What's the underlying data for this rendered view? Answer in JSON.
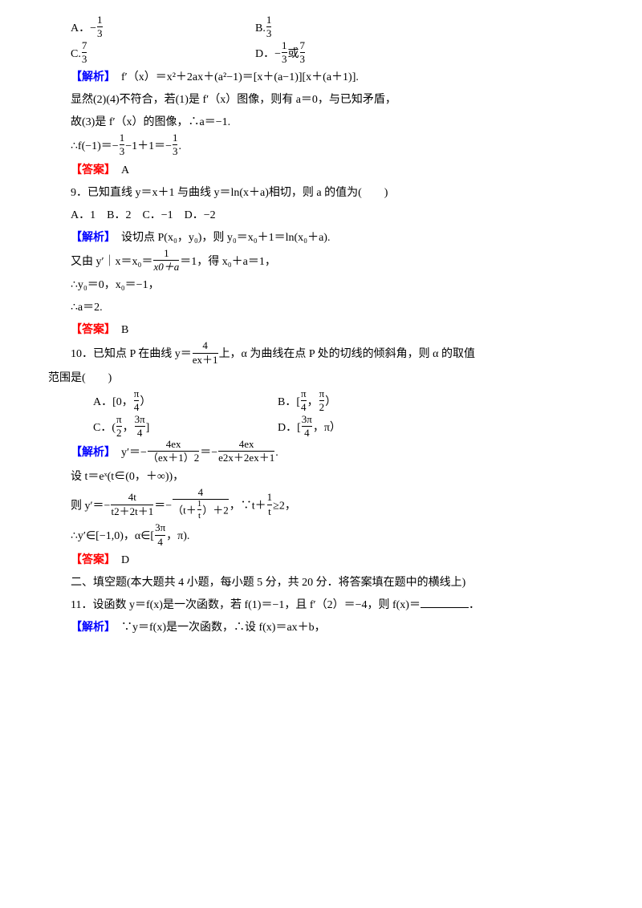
{
  "colors": {
    "analysis": "#0000ff",
    "answer": "#ff0000",
    "text": "#000000",
    "bg": "#ffffff"
  },
  "typography": {
    "body_fontsize": 14,
    "frac_fontsize": 13,
    "line_height": 2.0
  },
  "labels": {
    "analysis": "【解析】",
    "answer": "【答案】"
  },
  "q8": {
    "optA_prefix": "A．−",
    "optA_num": "1",
    "optA_den": "3",
    "optB_prefix": "B.",
    "optB_num": "1",
    "optB_den": "3",
    "optC_prefix": "C.",
    "optC_num": "7",
    "optC_den": "3",
    "optD_prefix": "D．−",
    "optD_num1": "1",
    "optD_den1": "3",
    "optD_mid": "或",
    "optD_num2": "7",
    "optD_den2": "3",
    "ana1": "f′（x）＝x²＋2ax＋(a²−1)＝[x＋(a−1)][x＋(a＋1)].",
    "ana2": "显然(2)(4)不符合，若(1)是 f′（x）图像，则有 a＝0，与已知矛盾，",
    "ana3": "故(3)是 f′（x）的图像，∴a＝−1.",
    "ana4a": "∴f(−1)＝−",
    "ana4_num1": "1",
    "ana4_den1": "3",
    "ana4b": "−1＋1＝−",
    "ana4_num2": "1",
    "ana4_den2": "3",
    "ana4c": ".",
    "answer_val": "　A"
  },
  "q9": {
    "stem": "9．已知直线 y＝x＋1 与曲线 y＝ln(x＋a)相切，则 a 的值为(　　)",
    "opts": "A．1　B．2　C．−1　D．−2",
    "ana1": "　设切点 P(x₀，y₀)，则 y₀＝x₀＋1＝ln(x₀＋a).",
    "ana2a": "又由 y′｜x＝x₀＝",
    "ana2_num": "1",
    "ana2_den": "x0＋a",
    "ana2b": "＝1，得 x₀＋a＝1，",
    "ana3": "∴y₀＝0，x₀＝−1，",
    "ana4": "∴a＝2.",
    "answer_val": "　B"
  },
  "q10": {
    "stem_a": "10．已知点 P 在曲线 y＝",
    "stem_num": "4",
    "stem_den": "ex＋1",
    "stem_b": "上，α 为曲线在点 P 处的切线的倾斜角，则 α 的取值",
    "stem_c": "范围是(　　)",
    "optA_a": "A．[0，",
    "optA_num": "π",
    "optA_den": "4",
    "optA_b": "）",
    "optB_a": "B．[",
    "optB_num1": "π",
    "optB_den1": "4",
    "optB_mid": "，",
    "optB_num2": "π",
    "optB_den2": "2",
    "optB_b": "）",
    "optC_a": "C．(",
    "optC_num1": "π",
    "optC_den1": "2",
    "optC_mid": "，",
    "optC_num2": "3π",
    "optC_den2": "4",
    "optC_b": "]",
    "optD_a": "D．[",
    "optD_num": "3π",
    "optD_den": "4",
    "optD_b": "，π）",
    "ana1a": "　y′＝−",
    "ana1_num1": "4ex",
    "ana1_den1": "（ex＋1）2",
    "ana1b": "＝−",
    "ana1_num2": "4ex",
    "ana1_den2": "e2x＋2ex＋1",
    "ana1c": ".",
    "ana2": "设 t＝eˣ(t∈(0，＋∞))，",
    "ana3a": "则 y′＝−",
    "ana3_num1": "4t",
    "ana3_den1": "t2＋2t＋1",
    "ana3b": "＝−",
    "ana3_num2": "4",
    "ana3_den2_a": "（t＋",
    "ana3_den2_num": "1",
    "ana3_den2_den": "t",
    "ana3_den2_b": "）＋2",
    "ana3c": "，∵t＋",
    "ana3_num3": "1",
    "ana3_den3": "t",
    "ana3d": "≥2，",
    "ana4a": "∴y′∈[−1,0)，α∈[",
    "ana4_num": "3π",
    "ana4_den": "4",
    "ana4b": "，π).",
    "answer_val": "　D"
  },
  "section2": {
    "title": "二、填空题(本大题共 4 小题，每小题 5 分，共 20 分．将答案填在题中的横线上)"
  },
  "q11": {
    "stem": "11．设函数 y＝f(x)是一次函数，若 f(1)＝−1，且 f′（2）＝−4，则 f(x)＝",
    "stem_end": "．",
    "ana1": "　∵y＝f(x)是一次函数，∴设 f(x)＝ax＋b，"
  }
}
